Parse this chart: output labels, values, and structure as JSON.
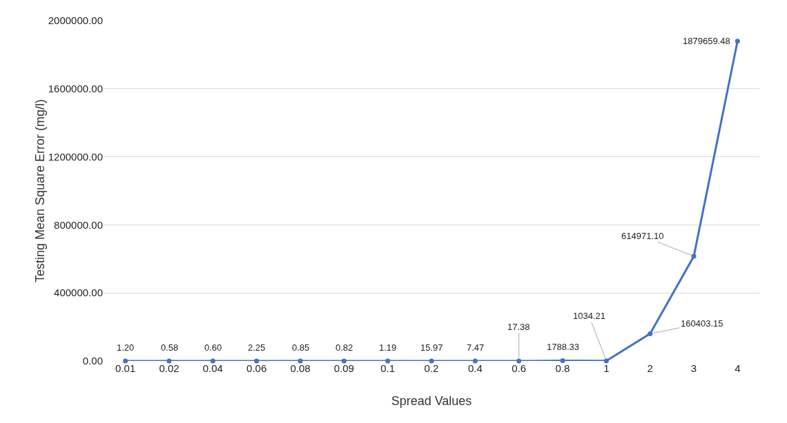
{
  "chart_data": {
    "type": "line",
    "xlabel": "Spread Values",
    "ylabel": "Testing Mean Square Error (mg/l)",
    "categories": [
      "0.01",
      "0.02",
      "0.04",
      "0.06",
      "0.08",
      "0.09",
      "0.1",
      "0.2",
      "0.4",
      "0.6",
      "0.8",
      "1",
      "2",
      "3",
      "4"
    ],
    "series": [
      {
        "color": "#4472c4",
        "values": [
          1.2,
          0.58,
          0.6,
          2.25,
          0.85,
          0.82,
          1.19,
          15.97,
          7.47,
          17.38,
          1788.33,
          1034.21,
          160403.15,
          614971.1,
          1879659.48
        ],
        "value_labels": [
          "1.20",
          "0.58",
          "0.60",
          "2.25",
          "0.85",
          "0.82",
          "1.19",
          "15.97",
          "7.47",
          "17.38",
          "1788.33",
          "1034.21",
          "160403.15",
          "614971.10",
          "1879659.48"
        ]
      }
    ],
    "ylim": [
      0,
      2000000
    ],
    "yticks": [
      {
        "value": 0,
        "label": "0.00"
      },
      {
        "value": 400000,
        "label": "400000.00"
      },
      {
        "value": 800000,
        "label": "800000.00"
      },
      {
        "value": 1200000,
        "label": "1200000.00"
      },
      {
        "value": 1600000,
        "label": "1600000.00"
      },
      {
        "value": 2000000,
        "label": "2000000.00"
      }
    ],
    "grid": "y",
    "marker": "circle",
    "line_style": "solid"
  }
}
